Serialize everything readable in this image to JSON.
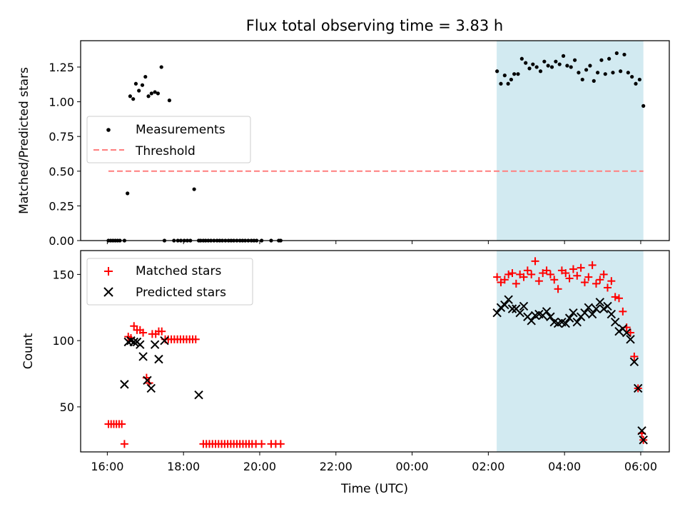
{
  "colors": {
    "measurement": "#000000",
    "threshold": "#ff7f7f",
    "matched": "#ff0000",
    "predicted": "#000000",
    "shade": "#add8e6"
  },
  "chart_data": [
    {
      "type": "scatter",
      "title": "Flux total observing time = 3.83 h",
      "xlabel": "",
      "ylabel": "Matched/Predicted stars",
      "xlim": [
        15.3,
        30.75
      ],
      "ylim": [
        0,
        1.44
      ],
      "x_tick_values": [
        16,
        18,
        20,
        22,
        24,
        26,
        28,
        30
      ],
      "y_ticks": [
        0,
        0.25,
        0.5,
        0.75,
        1.0,
        1.25
      ],
      "y_tick_labels": [
        "0.00",
        "0.25",
        "0.50",
        "0.75",
        "1.00",
        "1.25"
      ],
      "shaded_range": [
        26.22,
        30.07
      ],
      "threshold": {
        "y": 0.5,
        "x_range": [
          16.03,
          30.07
        ]
      },
      "legend": [
        "Measurements",
        "Threshold"
      ],
      "series": [
        {
          "name": "Measurements",
          "x": [
            16.03,
            16.09,
            16.15,
            16.21,
            16.27,
            16.33,
            16.45,
            16.53,
            16.6,
            16.68,
            16.75,
            16.83,
            16.92,
            17.0,
            17.08,
            17.16,
            17.25,
            17.33,
            17.42,
            17.5,
            17.63,
            17.75,
            17.85,
            17.93,
            18.02,
            18.1,
            18.18,
            18.28,
            18.4,
            18.45,
            18.52,
            18.58,
            18.65,
            18.72,
            18.8,
            18.88,
            18.95,
            19.02,
            19.1,
            19.18,
            19.25,
            19.32,
            19.4,
            19.48,
            19.55,
            19.62,
            19.7,
            19.78,
            19.85,
            19.92,
            20.05,
            20.3,
            20.5,
            20.55,
            26.23,
            26.33,
            26.43,
            26.52,
            26.6,
            26.68,
            26.78,
            26.88,
            26.98,
            27.08,
            27.17,
            27.27,
            27.37,
            27.47,
            27.57,
            27.67,
            27.77,
            27.87,
            27.97,
            28.07,
            28.17,
            28.27,
            28.37,
            28.47,
            28.57,
            28.67,
            28.77,
            28.87,
            28.97,
            29.07,
            29.17,
            29.27,
            29.37,
            29.47,
            29.57,
            29.67,
            29.77,
            29.87,
            29.97,
            30.07
          ],
          "y": [
            0,
            0,
            0,
            0,
            0,
            0,
            0,
            0.34,
            1.04,
            1.02,
            1.13,
            1.08,
            1.12,
            1.18,
            1.04,
            1.06,
            1.07,
            1.06,
            1.25,
            0.0,
            1.01,
            0,
            0,
            0,
            0,
            0,
            0,
            0.37,
            0,
            0,
            0,
            0,
            0,
            0,
            0,
            0,
            0,
            0,
            0,
            0,
            0,
            0,
            0,
            0,
            0,
            0,
            0,
            0,
            0,
            0,
            0,
            0,
            0,
            0,
            1.22,
            1.13,
            1.19,
            1.13,
            1.16,
            1.2,
            1.2,
            1.31,
            1.28,
            1.24,
            1.27,
            1.25,
            1.22,
            1.29,
            1.26,
            1.25,
            1.29,
            1.27,
            1.33,
            1.26,
            1.25,
            1.3,
            1.21,
            1.16,
            1.23,
            1.26,
            1.15,
            1.21,
            1.3,
            1.2,
            1.31,
            1.21,
            1.35,
            1.22,
            1.34,
            1.21,
            1.18,
            1.13,
            1.16,
            0.97
          ]
        }
      ]
    },
    {
      "type": "scatter",
      "title": "",
      "xlabel": "Time (UTC)",
      "ylabel": "Count",
      "xlim": [
        15.3,
        30.75
      ],
      "ylim": [
        16,
        168
      ],
      "x_tick_values": [
        16,
        18,
        20,
        22,
        24,
        26,
        28,
        30
      ],
      "x_tick_labels": [
        "16:00",
        "18:00",
        "20:00",
        "22:00",
        "00:00",
        "02:00",
        "04:00",
        "06:00"
      ],
      "y_ticks": [
        50,
        100,
        150
      ],
      "y_tick_labels": [
        "50",
        "100",
        "150"
      ],
      "shaded_range": [
        26.22,
        30.07
      ],
      "legend": [
        "Matched stars",
        "Predicted stars"
      ],
      "series": [
        {
          "name": "Matched stars",
          "x": [
            16.03,
            16.1,
            16.17,
            16.24,
            16.31,
            16.38,
            16.45,
            16.55,
            16.62,
            16.7,
            16.78,
            16.86,
            16.94,
            17.03,
            17.1,
            17.18,
            17.27,
            17.35,
            17.43,
            17.52,
            17.6,
            17.68,
            17.76,
            17.84,
            17.92,
            18.0,
            18.08,
            18.16,
            18.24,
            18.32,
            18.52,
            18.6,
            18.68,
            18.76,
            18.84,
            18.92,
            19.0,
            19.08,
            19.16,
            19.24,
            19.32,
            19.4,
            19.48,
            19.56,
            19.64,
            19.72,
            19.8,
            19.9,
            20.05,
            20.3,
            20.42,
            20.55,
            26.23,
            26.33,
            26.43,
            26.53,
            26.63,
            26.73,
            26.83,
            26.93,
            27.03,
            27.13,
            27.23,
            27.33,
            27.43,
            27.53,
            27.63,
            27.73,
            27.83,
            27.93,
            28.03,
            28.13,
            28.23,
            28.33,
            28.43,
            28.53,
            28.63,
            28.73,
            28.83,
            28.93,
            29.03,
            29.13,
            29.23,
            29.33,
            29.43,
            29.53,
            29.63,
            29.73,
            29.83,
            29.93,
            30.03,
            30.07
          ],
          "y": [
            37,
            37,
            37,
            37,
            37,
            37,
            22,
            103,
            102,
            111,
            108,
            108,
            106,
            72,
            68,
            105,
            105,
            107,
            107,
            101,
            101,
            101,
            101,
            101,
            101,
            101,
            101,
            101,
            101,
            101,
            22,
            22,
            22,
            22,
            22,
            22,
            22,
            22,
            22,
            22,
            22,
            22,
            22,
            22,
            22,
            22,
            22,
            22,
            22,
            22,
            22,
            22,
            148,
            144,
            146,
            150,
            151,
            143,
            150,
            148,
            153,
            150,
            160,
            145,
            151,
            153,
            150,
            146,
            139,
            153,
            151,
            147,
            154,
            149,
            155,
            144,
            148,
            157,
            143,
            146,
            150,
            140,
            145,
            133,
            132,
            122,
            110,
            106,
            88,
            64,
            30,
            25
          ]
        },
        {
          "name": "Predicted stars",
          "x": [
            16.45,
            16.55,
            16.62,
            16.7,
            16.78,
            16.86,
            16.94,
            17.05,
            17.15,
            17.25,
            17.35,
            17.5,
            18.4,
            26.23,
            26.33,
            26.43,
            26.53,
            26.63,
            26.73,
            26.83,
            26.93,
            27.03,
            27.13,
            27.23,
            27.33,
            27.43,
            27.53,
            27.63,
            27.73,
            27.83,
            27.93,
            28.03,
            28.13,
            28.23,
            28.33,
            28.43,
            28.53,
            28.63,
            28.73,
            28.83,
            28.93,
            29.03,
            29.13,
            29.23,
            29.33,
            29.43,
            29.53,
            29.63,
            29.73,
            29.83,
            29.93,
            30.03,
            30.07
          ],
          "y": [
            67,
            99,
            100,
            99,
            99,
            97,
            88,
            70,
            64,
            97,
            86,
            100,
            59,
            121,
            125,
            127,
            131,
            124,
            124,
            121,
            126,
            118,
            115,
            119,
            120,
            119,
            122,
            118,
            114,
            113,
            114,
            113,
            117,
            121,
            114,
            118,
            121,
            125,
            120,
            124,
            129,
            124,
            126,
            120,
            114,
            107,
            109,
            106,
            101,
            84,
            64,
            32,
            25
          ]
        }
      ]
    }
  ]
}
